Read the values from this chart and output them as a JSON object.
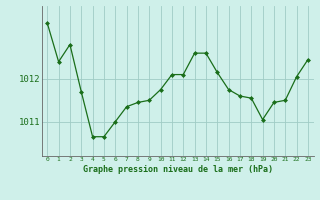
{
  "x": [
    0,
    1,
    2,
    3,
    4,
    5,
    6,
    7,
    8,
    9,
    10,
    11,
    12,
    13,
    14,
    15,
    16,
    17,
    18,
    19,
    20,
    21,
    22,
    23
  ],
  "y": [
    1013.3,
    1012.4,
    1012.8,
    1011.7,
    1010.65,
    1010.65,
    1011.0,
    1011.35,
    1011.45,
    1011.5,
    1011.75,
    1012.1,
    1012.1,
    1012.6,
    1012.6,
    1012.15,
    1011.75,
    1011.6,
    1011.55,
    1011.05,
    1011.45,
    1011.5,
    1012.05,
    1012.45
  ],
  "line_color": "#1a6e1a",
  "marker_color": "#1a6e1a",
  "bg_color": "#cff0ea",
  "grid_color": "#a0ccc5",
  "xlabel": "Graphe pression niveau de la mer (hPa)",
  "yticks": [
    1011,
    1012
  ],
  "ylim": [
    1010.2,
    1013.7
  ],
  "xlim": [
    -0.5,
    23.5
  ]
}
